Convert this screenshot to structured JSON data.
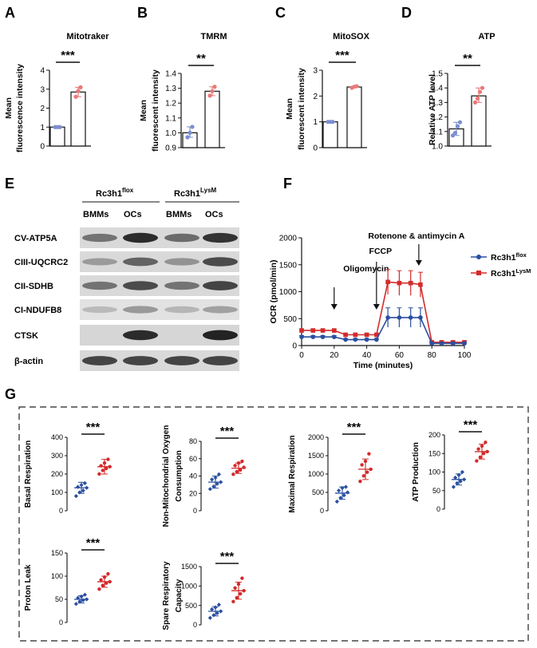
{
  "panel_labels": {
    "a": "A",
    "b": "B",
    "c": "C",
    "d": "D",
    "e": "E",
    "f": "F",
    "g": "G"
  },
  "bar_panels": [
    {
      "id": "a",
      "title": "Mitotraker",
      "ylabel": [
        "Mean",
        "fluorescence intensity"
      ],
      "sig": "***",
      "yticks": [
        "0",
        "1",
        "2",
        "3",
        "4"
      ]
    },
    {
      "id": "b",
      "title": "TMRM",
      "ylabel": [
        "Mean",
        "fluorescent intensity"
      ],
      "sig": "**",
      "yticks": [
        "0.9",
        "1.0",
        "1.1",
        "1.2",
        "1.3",
        "1.4"
      ]
    },
    {
      "id": "c",
      "title": "MitoSOX",
      "ylabel": [
        "Mean",
        "fluorescent intensity"
      ],
      "sig": "***",
      "yticks": [
        "0",
        "1",
        "2",
        "3"
      ]
    },
    {
      "id": "d",
      "title": "ATP",
      "ylabel": [
        "Relative ATP level"
      ],
      "sig": "**",
      "yticks": [
        "1.0",
        "1.1",
        "1.2",
        "1.3",
        "1.4",
        "1.5"
      ]
    }
  ],
  "western": {
    "group1": "Rc3h1",
    "group1_sup": "flox",
    "group2": "Rc3h1",
    "group2_sup": "LysM",
    "lanes": [
      "BMMs",
      "OCs",
      "BMMs",
      "OCs"
    ],
    "rows": [
      "CV-ATP5A",
      "CIII-UQCRC2",
      "CII-SDHB",
      "CI-NDUFB8",
      "CTSK",
      "β-actin"
    ]
  },
  "ocr": {
    "ylabel": "OCR (pmol/min)",
    "xlabel": "Time (minutes)",
    "yticks": [
      "0",
      "500",
      "1000",
      "1500",
      "2000"
    ],
    "xticks": [
      "0",
      "20",
      "40",
      "60",
      "80",
      "100"
    ],
    "annotations": {
      "oligo": "Oligomycin",
      "fccp": "FCCP",
      "rot": "Rotenone & antimycin A"
    },
    "legend": [
      {
        "name": "Rc3h1",
        "sup": "flox",
        "color": "#2a4fa0"
      },
      {
        "name": "Rc3h1",
        "sup": "LysM",
        "color": "#d42a2a"
      }
    ]
  },
  "g_panels": [
    {
      "ylabel": [
        "Basal Respiration"
      ],
      "yticks": [
        "0",
        "100",
        "200",
        "300",
        "400"
      ],
      "sig": "***"
    },
    {
      "ylabel": [
        "Non-Mitochondrial Oxygen",
        "Consumption"
      ],
      "yticks": [
        "0",
        "20",
        "40",
        "60",
        "80"
      ],
      "sig": "***"
    },
    {
      "ylabel": [
        "Maximal Respiration"
      ],
      "yticks": [
        "0",
        "500",
        "1000",
        "1500",
        "2000"
      ],
      "sig": "***"
    },
    {
      "ylabel": [
        "ATP Production"
      ],
      "yticks": [
        "0",
        "50",
        "100",
        "150",
        "200"
      ],
      "sig": "***"
    },
    {
      "ylabel": [
        "Proton Leak"
      ],
      "yticks": [
        "0",
        "50",
        "100",
        "150"
      ],
      "sig": "***"
    },
    {
      "ylabel": [
        "Spare Respiratory",
        "Capacity"
      ],
      "yticks": [
        "0",
        "500",
        "1000",
        "1500"
      ],
      "sig": "***"
    }
  ],
  "chart_data": [
    {
      "type": "bar",
      "title": "Mitotraker",
      "categories": [
        "Rc3h1 flox",
        "Rc3h1 LysM"
      ],
      "values": [
        1.0,
        2.85
      ],
      "ylim": [
        0,
        4
      ],
      "points": [
        [
          1.0,
          1.0,
          1.0
        ],
        [
          2.6,
          2.9,
          3.1
        ]
      ]
    },
    {
      "type": "bar",
      "title": "TMRM",
      "categories": [
        "Rc3h1 flox",
        "Rc3h1 LysM"
      ],
      "values": [
        1.0,
        1.28
      ],
      "ylim": [
        0.9,
        1.4
      ],
      "points": [
        [
          0.97,
          1.0,
          1.04
        ],
        [
          1.25,
          1.28,
          1.31
        ]
      ]
    },
    {
      "type": "bar",
      "title": "MitoSOX",
      "categories": [
        "Rc3h1 flox",
        "Rc3h1 LysM"
      ],
      "values": [
        1.0,
        2.35
      ],
      "ylim": [
        0,
        3
      ],
      "points": [
        [
          1.0,
          1.0,
          1.0
        ],
        [
          2.32,
          2.36,
          2.38
        ]
      ]
    },
    {
      "type": "bar",
      "title": "ATP",
      "categories": [
        "Rc3h1 flox",
        "Rc3h1 LysM"
      ],
      "values": [
        1.08,
        1.33
      ],
      "ylim": [
        0.95,
        1.5
      ],
      "points": [
        [
          1.03,
          1.05,
          1.1,
          1.13
        ],
        [
          1.28,
          1.31,
          1.36,
          1.39
        ]
      ]
    },
    {
      "type": "line",
      "title": "OCR",
      "xlabel": "Time (minutes)",
      "ylabel": "OCR (pmol/min)",
      "xlim": [
        0,
        100
      ],
      "ylim": [
        0,
        2000
      ],
      "x": [
        0,
        7,
        13,
        20,
        27,
        33,
        40,
        46,
        53,
        60,
        67,
        73,
        80,
        86,
        93,
        100
      ],
      "series": [
        {
          "name": "Rc3h1 flox",
          "values": [
            160,
            160,
            160,
            160,
            110,
            110,
            110,
            110,
            520,
            520,
            520,
            520,
            40,
            40,
            40,
            40
          ],
          "err": [
            25,
            25,
            25,
            25,
            20,
            20,
            20,
            20,
            180,
            180,
            180,
            180,
            20,
            20,
            20,
            20
          ]
        },
        {
          "name": "Rc3h1 LysM",
          "values": [
            280,
            280,
            280,
            280,
            200,
            200,
            200,
            200,
            1180,
            1160,
            1160,
            1130,
            60,
            60,
            60,
            60
          ],
          "err": [
            30,
            30,
            30,
            30,
            25,
            25,
            25,
            25,
            230,
            230,
            230,
            230,
            25,
            25,
            25,
            25
          ]
        }
      ]
    },
    {
      "type": "scatter",
      "title": "Basal Respiration",
      "categories": [
        "Rc3h1 flox",
        "Rc3h1 LysM"
      ],
      "ylim": [
        0,
        400
      ],
      "means": [
        125,
        240
      ],
      "sd": [
        30,
        40
      ],
      "points": [
        [
          80,
          100,
          110,
          125,
          130,
          140,
          150
        ],
        [
          200,
          220,
          230,
          240,
          245,
          260,
          280
        ]
      ]
    },
    {
      "type": "scatter",
      "title": "Non-Mitochondrial Oxygen Consumption",
      "categories": [
        "Rc3h1 flox",
        "Rc3h1 LysM"
      ],
      "ylim": [
        0,
        80
      ],
      "means": [
        33,
        49
      ],
      "sd": [
        7,
        6
      ],
      "points": [
        [
          25,
          28,
          31,
          33,
          36,
          38,
          42
        ],
        [
          42,
          45,
          47,
          50,
          52,
          55,
          57
        ]
      ]
    },
    {
      "type": "scatter",
      "title": "Maximal Respiration",
      "categories": [
        "Rc3h1 flox",
        "Rc3h1 LysM"
      ],
      "ylim": [
        0,
        2000
      ],
      "means": [
        480,
        1130
      ],
      "sd": [
        170,
        280
      ],
      "points": [
        [
          250,
          350,
          420,
          500,
          550,
          620,
          650
        ],
        [
          800,
          950,
          1050,
          1130,
          1250,
          1350,
          1550
        ]
      ]
    },
    {
      "type": "scatter",
      "title": "ATP Production",
      "categories": [
        "Rc3h1 flox",
        "Rc3h1 LysM"
      ],
      "ylim": [
        0,
        200
      ],
      "means": [
        80,
        155
      ],
      "sd": [
        15,
        20
      ],
      "points": [
        [
          60,
          70,
          75,
          80,
          85,
          92,
          100
        ],
        [
          130,
          140,
          150,
          155,
          162,
          170,
          180
        ]
      ]
    },
    {
      "type": "scatter",
      "title": "Proton Leak",
      "categories": [
        "Rc3h1 flox",
        "Rc3h1 LysM"
      ],
      "ylim": [
        0,
        150
      ],
      "means": [
        50,
        88
      ],
      "sd": [
        8,
        12
      ],
      "points": [
        [
          40,
          45,
          48,
          50,
          53,
          56,
          60
        ],
        [
          72,
          80,
          85,
          88,
          92,
          98,
          105
        ]
      ]
    },
    {
      "type": "scatter",
      "title": "Spare Respiratory Capacity",
      "categories": [
        "Rc3h1 flox",
        "Rc3h1 LysM"
      ],
      "ylim": [
        0,
        1500
      ],
      "means": [
        350,
        880
      ],
      "sd": [
        120,
        220
      ],
      "points": [
        [
          180,
          250,
          300,
          350,
          400,
          450,
          520
        ],
        [
          600,
          700,
          800,
          880,
          950,
          1050,
          1200
        ]
      ]
    }
  ]
}
